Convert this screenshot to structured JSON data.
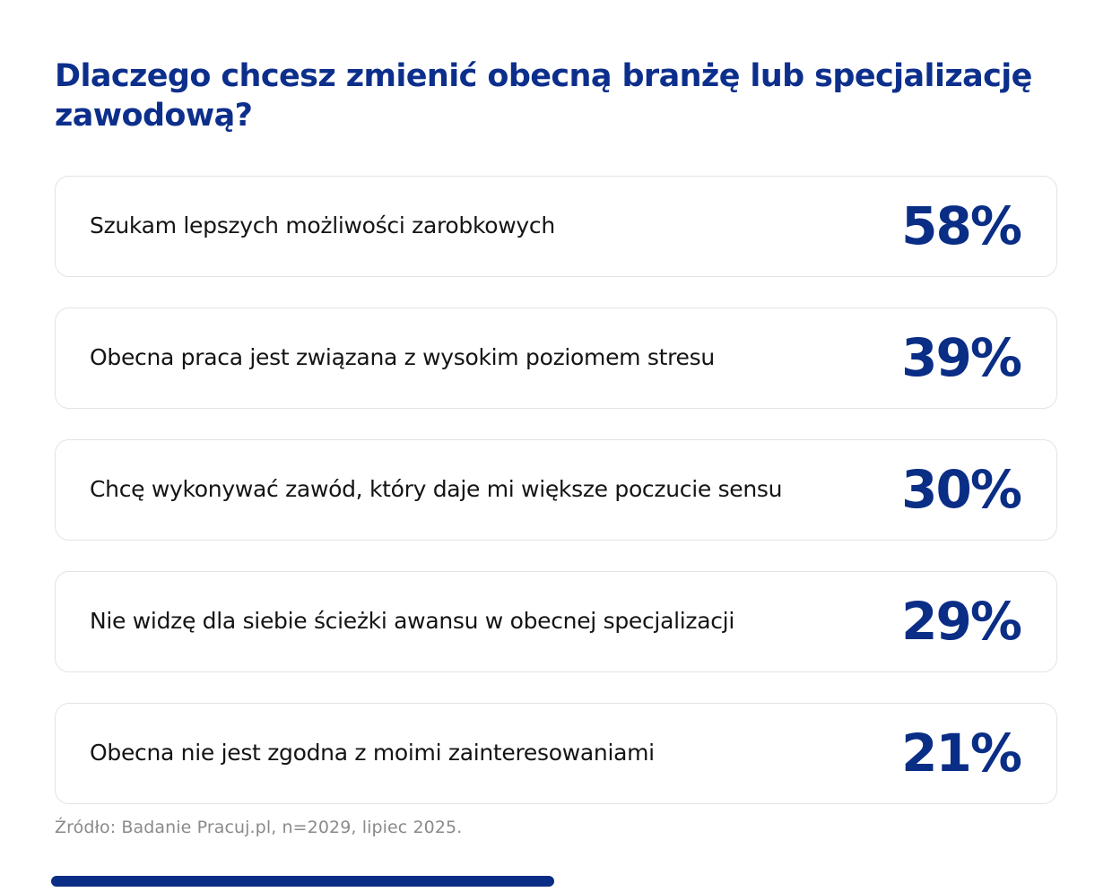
{
  "title": "Dlaczego chcesz zmienić obecną branżę lub specjalizację zawodową?",
  "source_note": "Źródło: Badanie Pracuj.pl, n=2029, lipiec 2025.",
  "colors": {
    "title_navy": "#0d2f8c",
    "accent_navy": "#0a2d85",
    "card_border": "#e3e3e3",
    "label_text": "#141414",
    "source_gray": "#8a8a8a",
    "background": "#ffffff"
  },
  "cards": [
    {
      "label": "Szukam lepszych możliwości zarobkowych",
      "value_display": "58%"
    },
    {
      "label": "Obecna praca jest związana z wysokim poziomem stresu",
      "value_display": "39%"
    },
    {
      "label": "Chcę wykonywać zawód, który daje mi większe poczucie sensu",
      "value_display": "30%"
    },
    {
      "label": "Nie widzę dla siebie ścieżki awansu w obecnej specjalizacji",
      "value_display": "29%"
    },
    {
      "label": "Obecna nie jest zgodna z moimi zainteresowaniami",
      "value_display": "21%"
    }
  ],
  "chart_data": {
    "type": "bar",
    "orientation": "horizontal-card-list",
    "title": "Dlaczego chcesz zmienić obecną branżę lub specjalizację zawodową?",
    "categories": [
      "Szukam lepszych możliwości zarobkowych",
      "Obecna praca jest związana z wysokim poziomem stresu",
      "Chcę wykonywać zawód, który daje mi większe poczucie sensu",
      "Nie widzę dla siebie ścieżki awansu w obecnej specjalizacji",
      "Obecna nie jest zgodna z moimi zainteresowaniami"
    ],
    "values": [
      58,
      39,
      30,
      29,
      21
    ],
    "unit": "%",
    "xlabel": "",
    "ylabel": "",
    "legend": "none",
    "grid": "off",
    "source": "Źródło: Badanie Pracuj.pl, n=2029, lipiec 2025."
  }
}
